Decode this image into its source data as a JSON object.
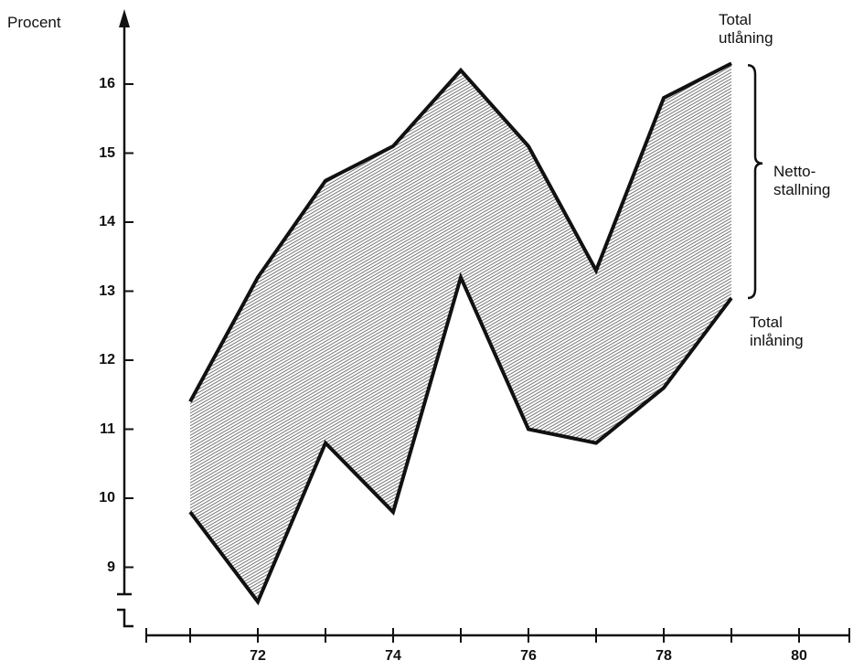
{
  "chart_data": {
    "type": "area",
    "title": "",
    "ylabel": "Procent",
    "xlabel": "",
    "ylim": [
      8.5,
      17
    ],
    "xlim": [
      70.3,
      80.7
    ],
    "yticks": [
      9,
      10,
      11,
      12,
      13,
      14,
      15,
      16
    ],
    "xticks": [
      71,
      72,
      73,
      74,
      75,
      76,
      77,
      78,
      79,
      80
    ],
    "xtick_labels": [
      "72",
      "74",
      "76",
      "78",
      "80"
    ],
    "x": [
      71,
      72,
      73,
      74,
      75,
      76,
      77,
      78,
      79
    ],
    "series": [
      {
        "name": "Total utlåning",
        "values": [
          11.4,
          13.2,
          14.6,
          15.1,
          16.2,
          15.1,
          13.3,
          15.8,
          16.3
        ]
      },
      {
        "name": "Total inlåning",
        "values": [
          9.8,
          8.5,
          10.8,
          9.8,
          13.2,
          11.0,
          10.8,
          11.6,
          12.9
        ]
      }
    ],
    "fill_label": "Netto-stallning",
    "fill_color": "#6a6a6a",
    "line_color": "#111111",
    "grid": false,
    "y_axis_break": true
  }
}
